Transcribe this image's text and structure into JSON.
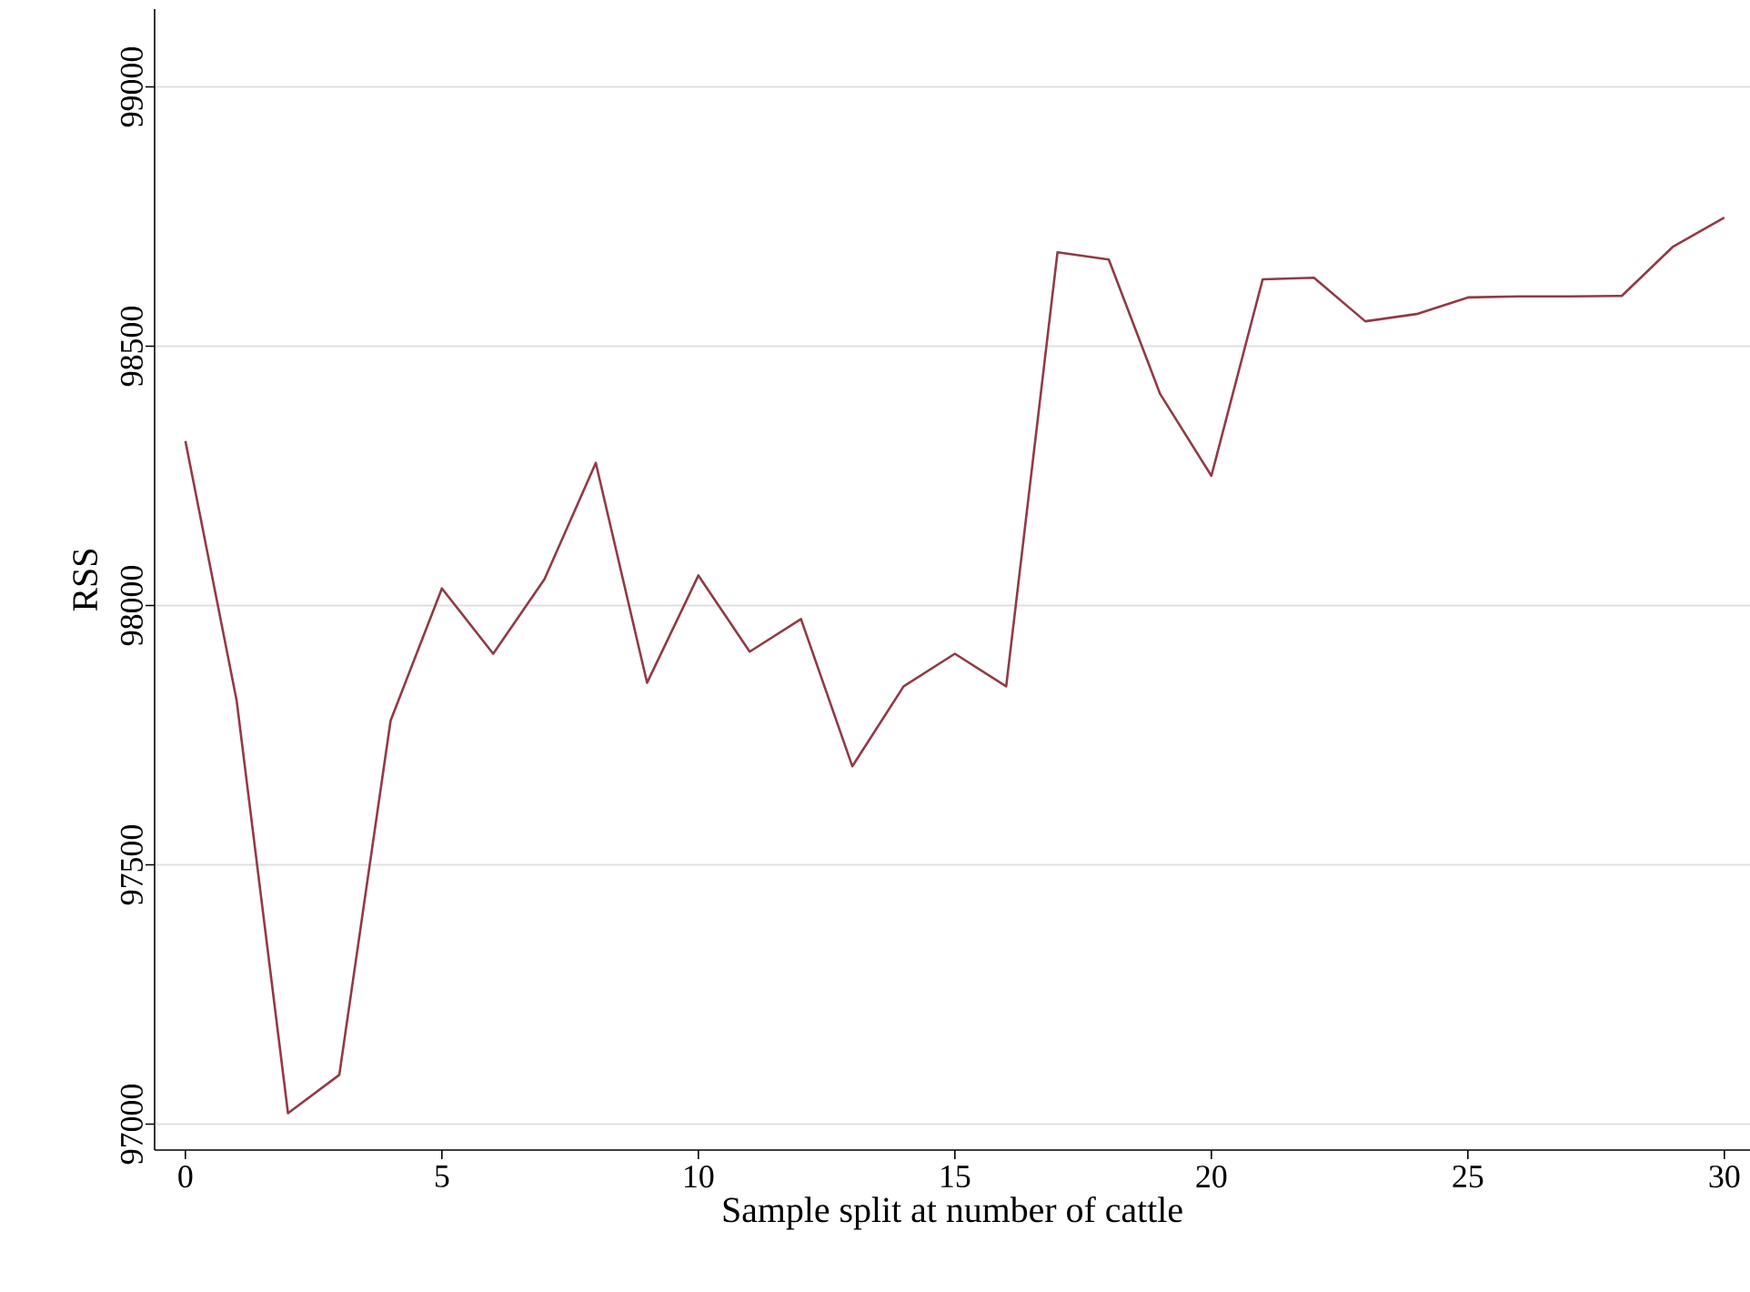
{
  "chart_data": {
    "type": "line",
    "xlabel": "Sample split at number of cattle",
    "ylabel": "RSS",
    "x": [
      0,
      1,
      2,
      3,
      4,
      5,
      6,
      7,
      8,
      9,
      10,
      11,
      12,
      13,
      14,
      15,
      16,
      17,
      18,
      19,
      20,
      21,
      22,
      23,
      24,
      25,
      26,
      27,
      28,
      29,
      30
    ],
    "series": [
      {
        "color": "#913a45",
        "values": [
          98317,
          97816,
          97021,
          97095,
          97778,
          98033,
          97907,
          98051,
          98275,
          97851,
          98058,
          97911,
          97974,
          97690,
          97844,
          97907,
          97844,
          98681,
          98667,
          98408,
          98250,
          98629,
          98632,
          98548,
          98562,
          98594,
          98596,
          98596,
          98597,
          98692,
          98748
        ]
      }
    ],
    "xlim": [
      -0.6,
      30.5
    ],
    "ylim": [
      96950,
      99150
    ],
    "xticks": [
      0,
      5,
      10,
      15,
      20,
      25,
      30
    ],
    "yticks": [
      97000,
      97500,
      98000,
      98500,
      99000
    ],
    "grid": "y",
    "marker": "none",
    "line_style": "solid"
  }
}
